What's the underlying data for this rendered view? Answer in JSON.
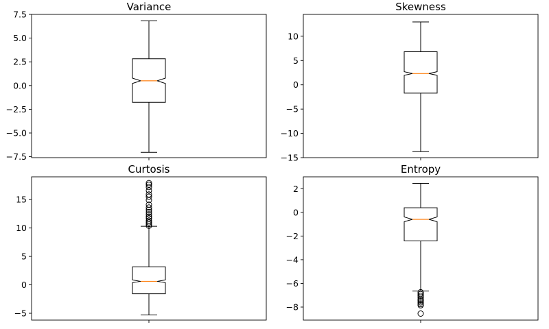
{
  "chart_data": [
    {
      "type": "box",
      "title": "Variance",
      "ylim": [
        -7.6,
        7.5
      ],
      "yticks": [
        -7.5,
        -5.0,
        -2.5,
        0.0,
        2.5,
        5.0,
        7.5
      ],
      "ytick_labels": [
        "−7.5",
        "−5.0",
        "−2.5",
        "0.0",
        "2.5",
        "5.0",
        "7.5"
      ],
      "notched": true,
      "box": {
        "whisker_low": -7.04,
        "q1": -1.77,
        "median": 0.5,
        "q3": 2.82,
        "whisker_high": 6.82,
        "notch_low": 0.22,
        "notch_high": 0.78
      },
      "outliers": []
    },
    {
      "type": "box",
      "title": "Skewness",
      "ylim": [
        -15,
        14.5
      ],
      "yticks": [
        -15,
        -10,
        -5,
        0,
        5,
        10
      ],
      "ytick_labels": [
        "−15",
        "−10",
        "−5",
        "0",
        "5",
        "10"
      ],
      "notched": true,
      "box": {
        "whisker_low": -13.77,
        "q1": -1.71,
        "median": 2.32,
        "q3": 6.81,
        "whisker_high": 12.95,
        "notch_low": 1.95,
        "notch_high": 2.7
      },
      "outliers": []
    },
    {
      "type": "box",
      "title": "Curtosis",
      "ylim": [
        -6.2,
        19.0
      ],
      "yticks": [
        -5,
        0,
        5,
        10,
        15
      ],
      "ytick_labels": [
        "−5",
        "0",
        "5",
        "10",
        "15"
      ],
      "notched": true,
      "box": {
        "whisker_low": -5.29,
        "q1": -1.57,
        "median": 0.62,
        "q3": 3.18,
        "whisker_high": 10.3,
        "notch_low": 0.38,
        "notch_high": 0.86
      },
      "outliers": [
        10.4,
        10.7,
        11.0,
        11.3,
        11.7,
        12.0,
        12.4,
        12.8,
        13.2,
        13.6,
        14.1,
        14.9,
        15.5,
        15.9,
        16.6,
        17.2,
        17.6,
        17.9
      ]
    },
    {
      "type": "box",
      "title": "Entropy",
      "ylim": [
        -9.1,
        3.0
      ],
      "yticks": [
        -8,
        -6,
        -4,
        -2,
        0,
        2
      ],
      "ytick_labels": [
        "−8",
        "−6",
        "−4",
        "−2",
        "0",
        "2"
      ],
      "notched": true,
      "box": {
        "whisker_low": -6.65,
        "q1": -2.41,
        "median": -0.59,
        "q3": 0.39,
        "whisker_high": 2.45,
        "notch_low": -0.79,
        "notch_high": -0.39
      },
      "outliers": [
        -6.75,
        -6.9,
        -7.05,
        -7.2,
        -7.35,
        -7.45,
        -7.6,
        -7.75,
        -7.85,
        -8.55
      ]
    }
  ],
  "colors": {
    "box": "#000000",
    "median": "#ff7f0e",
    "background": "#ffffff"
  }
}
